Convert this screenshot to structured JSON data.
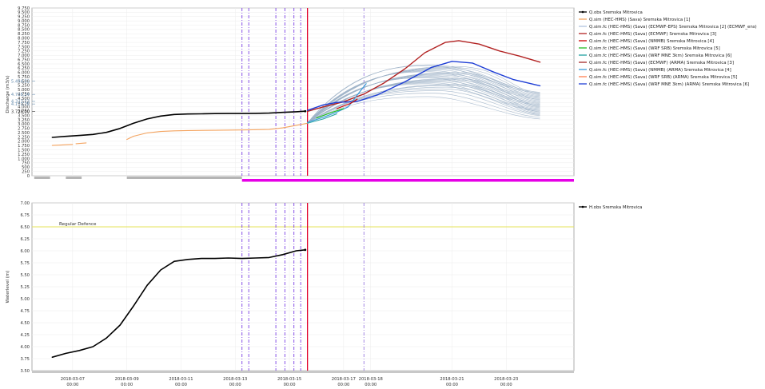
{
  "chart_data": [
    {
      "type": "line",
      "ylabel": "Discharge (m3/s)",
      "ylim": [
        0,
        9750
      ],
      "yticks": [
        0,
        250,
        500,
        750,
        1000,
        1250,
        1500,
        1750,
        2000,
        2250,
        2500,
        2750,
        3000,
        3250,
        3500,
        3750,
        4000,
        4250,
        4500,
        4750,
        5000,
        5250,
        5500,
        5750,
        6000,
        6250,
        6500,
        6750,
        7000,
        7250,
        7500,
        7750,
        8000,
        8250,
        8500,
        8750,
        9000,
        9250,
        9500,
        9750
      ],
      "yticklabels": [
        "0",
        "250",
        "500",
        "750",
        "1.000",
        "1.250",
        "1.500",
        "1.750",
        "2.000",
        "2.250",
        "2.500",
        "2.750",
        "3.000",
        "3.250",
        "3.500",
        "3.750",
        "4.000",
        "4.250",
        "4.500",
        "4.750",
        "5.000",
        "5.250",
        "5.500",
        "5.750",
        "6.000",
        "6.250",
        "6.500",
        "6.750",
        "7.000",
        "7.250",
        "7.500",
        "7.750",
        "8.000",
        "8.250",
        "8.500",
        "8.750",
        "9.000",
        "9.250",
        "9.500",
        "9.750"
      ],
      "value_markers": [
        {
          "value": 3728,
          "label": "3.728,00",
          "color": "#333333"
        },
        {
          "value": 4171,
          "label": "4.171,76",
          "color": "#6a8fb0"
        },
        {
          "value": 4321,
          "label": "4.321,13",
          "color": "#6a8fb0"
        },
        {
          "value": 4728,
          "label": "4.728,34",
          "color": "#6a8fb0"
        },
        {
          "value": 5494,
          "label": "5.494,52",
          "color": "#6a8fb0"
        }
      ],
      "vlines": [
        {
          "x": "2018-03-13 06:00",
          "color": "#7b3fe4",
          "dash": true
        },
        {
          "x": "2018-03-13 12:00",
          "color": "#7b3fe4",
          "dash": true
        },
        {
          "x": "2018-03-14 12:00",
          "color": "#7b3fe4",
          "dash": true
        },
        {
          "x": "2018-03-14 20:00",
          "color": "#7b3fe4",
          "dash": true
        },
        {
          "x": "2018-03-15 04:00",
          "color": "#7b3fe4",
          "dash": true
        },
        {
          "x": "2018-03-15 10:00",
          "color": "#7b3fe4",
          "dash": true
        },
        {
          "x": "2018-03-15 16:00",
          "color": "#e2002a",
          "dash": false
        },
        {
          "x": "2018-03-17 18:00",
          "color": "#9a7ae0",
          "dash": true
        }
      ],
      "legend": [
        {
          "name": "Q.obs Sremska Mitrovica",
          "color": "#000000",
          "marker": true
        },
        {
          "name": "Q.sim (HEC-HMS) (Sava) Sremska Mitrovica [1]",
          "color": "#f4a460"
        },
        {
          "name": "Q.sim.fc (HEC-HMS) (Sava) (ECMWF-EPS) Sremska Mitrovica [2] (ECMWF_ens)",
          "color": "#b0c4de"
        },
        {
          "name": "Q.sim.fc (HEC-HMS) (Sava) (ECMWF) Sremska Mitrovica [3]",
          "color": "#b22222"
        },
        {
          "name": "Q.sim.fc (HEC-HMS) (Sava) (NMMB) Sremska Mitrovica [4]",
          "color": "#cc0000"
        },
        {
          "name": "Q.sim.fc (HEC-HMS) (Sava) (WRF SRB) Sremska Mitrovica [5]",
          "color": "#22bb22"
        },
        {
          "name": "Q.sim.fc (HEC-HMS) (Sava) (WRF MNE 3km) Sremska Mitrovica [6]",
          "color": "#20a0a0"
        },
        {
          "name": "Q.sim.fc (HEC-HMS) (Sava) (ECMWF) (ARMA) Sremska Mitrovica [3]",
          "color": "#a52a2a"
        },
        {
          "name": "Q.sim.fc (HEC-HMS) (Sava) (NMMB) (ARMA) Sremska Mitrovica [4]",
          "color": "#3a9ad9"
        },
        {
          "name": "Q.sim.fc (HEC-HMS) (Sava) (WRF SRB) (ARMA) Sremska Mitrovica [5]",
          "color": "#ff7f50"
        },
        {
          "name": "Q.sim.fc (HEC-HMS) (Sava) (WRF MNE 3km) (ARMA) Sremska Mitrovica [6]",
          "color": "#1f3fd6"
        }
      ],
      "series": [
        {
          "key": "qobs",
          "color": "#000000",
          "width": 1.6,
          "points": [
            [
              "2018-03-06 06:00",
              2230
            ],
            [
              "2018-03-06 18:00",
              2290
            ],
            [
              "2018-03-07 06:00",
              2340
            ],
            [
              "2018-03-07 18:00",
              2400
            ],
            [
              "2018-03-08 06:00",
              2520
            ],
            [
              "2018-03-08 18:00",
              2750
            ],
            [
              "2018-03-09 06:00",
              3050
            ],
            [
              "2018-03-09 18:00",
              3300
            ],
            [
              "2018-03-10 06:00",
              3470
            ],
            [
              "2018-03-10 18:00",
              3560
            ],
            [
              "2018-03-11 06:00",
              3590
            ],
            [
              "2018-03-11 18:00",
              3600
            ],
            [
              "2018-03-12 06:00",
              3610
            ],
            [
              "2018-03-12 18:00",
              3615
            ],
            [
              "2018-03-13 06:00",
              3615
            ],
            [
              "2018-03-13 18:00",
              3625
            ],
            [
              "2018-03-14 06:00",
              3640
            ],
            [
              "2018-03-14 18:00",
              3680
            ],
            [
              "2018-03-15 06:00",
              3720
            ],
            [
              "2018-03-15 14:00",
              3750
            ]
          ]
        },
        {
          "key": "qsim_early",
          "color": "#f4a460",
          "width": 1.1,
          "points": [
            [
              "2018-03-06 06:00",
              1760
            ],
            [
              "2018-03-06 12:00",
              1780
            ],
            [
              "2018-03-06 18:00",
              1800
            ],
            [
              "2018-03-07 00:00",
              1820
            ]
          ]
        },
        {
          "key": "qsim_early2",
          "color": "#f4a460",
          "width": 1.1,
          "points": [
            [
              "2018-03-07 03:00",
              1860
            ],
            [
              "2018-03-07 12:00",
              1910
            ]
          ]
        },
        {
          "key": "qsim",
          "color": "#f4a460",
          "width": 1.1,
          "points": [
            [
              "2018-03-09 00:00",
              2110
            ],
            [
              "2018-03-09 06:00",
              2300
            ],
            [
              "2018-03-09 18:00",
              2490
            ],
            [
              "2018-03-10 06:00",
              2570
            ],
            [
              "2018-03-10 18:00",
              2610
            ],
            [
              "2018-03-11 06:00",
              2630
            ],
            [
              "2018-03-12 06:00",
              2640
            ],
            [
              "2018-03-13 06:00",
              2660
            ],
            [
              "2018-03-14 06:00",
              2690
            ],
            [
              "2018-03-14 18:00",
              2780
            ],
            [
              "2018-03-15 06:00",
              2930
            ],
            [
              "2018-03-15 16:00",
              3050
            ]
          ]
        },
        {
          "key": "ecmwf",
          "color": "#b22222",
          "width": 1.4,
          "points": [
            [
              "2018-03-15 16:00",
              3740
            ],
            [
              "2018-03-16 06:00",
              4000
            ],
            [
              "2018-03-17 00:00",
              4300
            ],
            [
              "2018-03-17 18:00",
              4750
            ],
            [
              "2018-03-18 12:00",
              5400
            ],
            [
              "2018-03-19 06:00",
              6200
            ],
            [
              "2018-03-20 00:00",
              7150
            ],
            [
              "2018-03-20 18:00",
              7750
            ],
            [
              "2018-03-21 06:00",
              7850
            ],
            [
              "2018-03-22 00:00",
              7650
            ],
            [
              "2018-03-22 18:00",
              7250
            ],
            [
              "2018-03-23 12:00",
              6950
            ],
            [
              "2018-03-24 06:00",
              6600
            ]
          ]
        },
        {
          "key": "wrfmne_arma",
          "color": "#1f3fd6",
          "width": 1.4,
          "points": [
            [
              "2018-03-15 16:00",
              3800
            ],
            [
              "2018-03-16 06:00",
              4120
            ],
            [
              "2018-03-16 18:00",
              4260
            ],
            [
              "2018-03-17 12:00",
              4320
            ],
            [
              "2018-03-18 06:00",
              4700
            ],
            [
              "2018-03-19 06:00",
              5450
            ],
            [
              "2018-03-20 06:00",
              6300
            ],
            [
              "2018-03-21 00:00",
              6650
            ],
            [
              "2018-03-21 18:00",
              6550
            ],
            [
              "2018-03-22 12:00",
              6050
            ],
            [
              "2018-03-23 06:00",
              5600
            ],
            [
              "2018-03-24 06:00",
              5230
            ]
          ]
        },
        {
          "key": "nmmb_arma",
          "color": "#3a9ad9",
          "width": 1.2,
          "points": [
            [
              "2018-03-15 16:00",
              3100
            ],
            [
              "2018-03-16 06:00",
              3400
            ],
            [
              "2018-03-16 18:00",
              3700
            ],
            [
              "2018-03-17 04:00",
              4000
            ],
            [
              "2018-03-17 14:00",
              4850
            ],
            [
              "2018-03-17 20:00",
              5350
            ]
          ]
        },
        {
          "key": "wrfsrb",
          "color": "#22bb22",
          "width": 1.2,
          "points": [
            [
              "2018-03-16 00:00",
              3350
            ],
            [
              "2018-03-16 12:00",
              3650
            ],
            [
              "2018-03-17 00:00",
              3900
            ]
          ]
        },
        {
          "key": "nmmb",
          "color": "#cc0000",
          "width": 1.2,
          "points": [
            [
              "2018-03-16 18:00",
              3900
            ],
            [
              "2018-03-17 06:00",
              4200
            ],
            [
              "2018-03-17 12:00",
              4450
            ]
          ]
        },
        {
          "key": "wrfmne",
          "color": "#20a0a0",
          "width": 1.0,
          "points": [
            [
              "2018-03-15 16:00",
              3050
            ],
            [
              "2018-03-16 06:00",
              3300
            ],
            [
              "2018-03-16 18:00",
              3600
            ]
          ]
        }
      ],
      "ensemble": {
        "color": "#9fb3c8",
        "start": "2018-03-15 16:00",
        "start_value": 3070,
        "end": "2018-03-24 06:00",
        "peaks": [
          4600,
          4800,
          4950,
          5050,
          5150,
          5250,
          5300,
          5350,
          5400,
          5450,
          5500,
          5550,
          5600,
          5650,
          5700,
          5750,
          5800,
          5850,
          5900,
          5950,
          6000,
          6050,
          6100,
          6150,
          6200,
          6250,
          6300,
          6350,
          6400,
          6450
        ],
        "ends": [
          3300,
          3400,
          3500,
          3550,
          3600,
          3650,
          3700,
          3750,
          3800,
          3850,
          3900,
          3950,
          4000,
          4050,
          4100,
          4150,
          4200,
          4250,
          4300,
          4350,
          4400,
          4450,
          4500,
          4550,
          4600,
          4650,
          4700,
          4750,
          4800,
          4850
        ]
      }
    },
    {
      "type": "line",
      "ylabel": "Waterlevel (m)",
      "ylim": [
        3.5,
        7.0
      ],
      "yticks": [
        3.5,
        3.75,
        4.0,
        4.25,
        4.5,
        4.75,
        5.0,
        5.25,
        5.5,
        5.75,
        6.0,
        6.25,
        6.5,
        6.75,
        7.0
      ],
      "yticklabels": [
        "3.50",
        "3.75",
        "4.00",
        "4.25",
        "4.50",
        "4.75",
        "5.00",
        "5.25",
        "5.50",
        "5.75",
        "6.00",
        "6.25",
        "6.50",
        "6.75",
        "7.00"
      ],
      "hline": {
        "value": 6.5,
        "label": "Regular Defence",
        "color": "#e6e35a"
      },
      "legend": [
        {
          "name": "H.obs Sremska Mitrovica",
          "color": "#000000",
          "marker": true
        }
      ],
      "series": [
        {
          "key": "hobs",
          "color": "#000000",
          "width": 1.6,
          "points": [
            [
              "2018-03-06 06:00",
              3.78
            ],
            [
              "2018-03-06 18:00",
              3.86
            ],
            [
              "2018-03-07 06:00",
              3.92
            ],
            [
              "2018-03-07 18:00",
              4.0
            ],
            [
              "2018-03-08 06:00",
              4.18
            ],
            [
              "2018-03-08 18:00",
              4.45
            ],
            [
              "2018-03-09 06:00",
              4.85
            ],
            [
              "2018-03-09 18:00",
              5.28
            ],
            [
              "2018-03-10 06:00",
              5.6
            ],
            [
              "2018-03-10 18:00",
              5.78
            ],
            [
              "2018-03-11 06:00",
              5.82
            ],
            [
              "2018-03-11 18:00",
              5.84
            ],
            [
              "2018-03-12 06:00",
              5.84
            ],
            [
              "2018-03-12 18:00",
              5.85
            ],
            [
              "2018-03-13 06:00",
              5.84
            ],
            [
              "2018-03-13 18:00",
              5.85
            ],
            [
              "2018-03-14 06:00",
              5.86
            ],
            [
              "2018-03-14 18:00",
              5.92
            ],
            [
              "2018-03-15 06:00",
              6.0
            ],
            [
              "2018-03-15 14:00",
              6.02
            ]
          ]
        }
      ],
      "vlines": [
        {
          "x": "2018-03-13 06:00",
          "color": "#7b3fe4",
          "dash": true
        },
        {
          "x": "2018-03-13 12:00",
          "color": "#7b3fe4",
          "dash": true
        },
        {
          "x": "2018-03-14 12:00",
          "color": "#7b3fe4",
          "dash": true
        },
        {
          "x": "2018-03-14 20:00",
          "color": "#7b3fe4",
          "dash": true
        },
        {
          "x": "2018-03-15 04:00",
          "color": "#7b3fe4",
          "dash": true
        },
        {
          "x": "2018-03-15 10:00",
          "color": "#7b3fe4",
          "dash": true
        },
        {
          "x": "2018-03-15 16:00",
          "color": "#e2002a",
          "dash": false
        },
        {
          "x": "2018-03-17 18:00",
          "color": "#9a7ae0",
          "dash": true
        }
      ]
    }
  ],
  "xaxis": {
    "range": [
      "2018-03-05 12:00",
      "2018-03-25 12:00"
    ],
    "ticks": [
      {
        "at": "2018-03-07 00:00",
        "date": "2018-03-07",
        "time": "00:00"
      },
      {
        "at": "2018-03-09 00:00",
        "date": "2018-03-09",
        "time": "00:00"
      },
      {
        "at": "2018-03-11 00:00",
        "date": "2018-03-11",
        "time": "00:00"
      },
      {
        "at": "2018-03-13 00:00",
        "date": "2018-03-13",
        "time": "00:00"
      },
      {
        "at": "2018-03-15 00:00",
        "date": "2018-03-15",
        "time": "00:00"
      },
      {
        "at": "2018-03-17 00:00",
        "date": "2018-03-17",
        "time": "00:00"
      },
      {
        "at": "2018-03-18 00:00",
        "date": "2018-03-18",
        "time": "00:00"
      },
      {
        "at": "2018-03-21 00:00",
        "date": "2018-03-21",
        "time": "00:00"
      },
      {
        "at": "2018-03-23 00:00",
        "date": "2018-03-23",
        "time": "00:00"
      }
    ]
  },
  "bars": {
    "grey": [
      [
        "2018-03-05 14:00",
        "2018-03-06 04:00"
      ],
      [
        "2018-03-06 18:00",
        "2018-03-07 08:00"
      ],
      [
        "2018-03-09 00:00",
        "2018-03-13 06:00"
      ]
    ],
    "magenta": [
      [
        "2018-03-13 06:00",
        "2018-03-25 12:00"
      ]
    ]
  }
}
